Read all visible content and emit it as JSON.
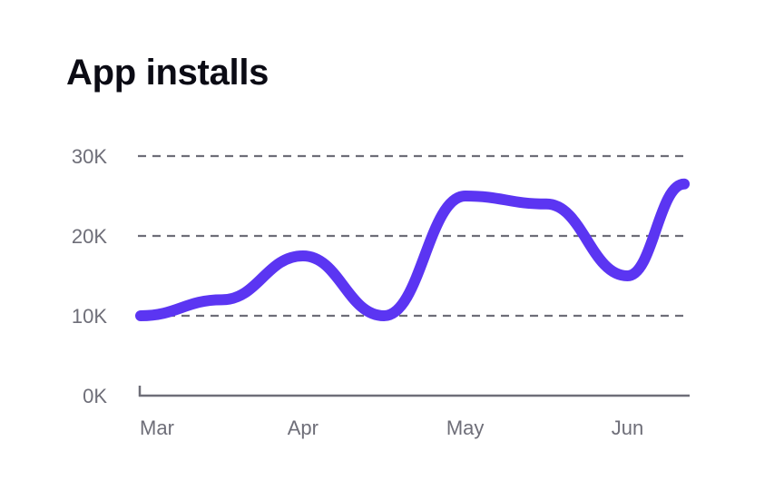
{
  "chart_data": {
    "type": "line",
    "title": "App installs",
    "xlabel": "",
    "ylabel": "",
    "x": [
      0,
      0.5,
      1.0,
      1.5,
      2.0,
      2.5,
      3.0,
      3.35
    ],
    "x_tick_labels": [
      "Mar",
      "Apr",
      "May",
      "Jun"
    ],
    "x_tick_positions": [
      0,
      1,
      2,
      3
    ],
    "values": [
      10000,
      12000,
      17500,
      10000,
      25000,
      24000,
      15000,
      26500
    ],
    "y_ticks": [
      0,
      10000,
      20000,
      30000
    ],
    "y_tick_labels": [
      "0K",
      "10K",
      "20K",
      "30K"
    ],
    "ylim": [
      0,
      30000
    ],
    "xlim": [
      0,
      3.4
    ],
    "grid": "horizontal dashed at 10K, 20K, 30K",
    "line_color": "#5b35f2",
    "grid_color": "#6e6e78",
    "axis_color": "#6e6e78"
  }
}
